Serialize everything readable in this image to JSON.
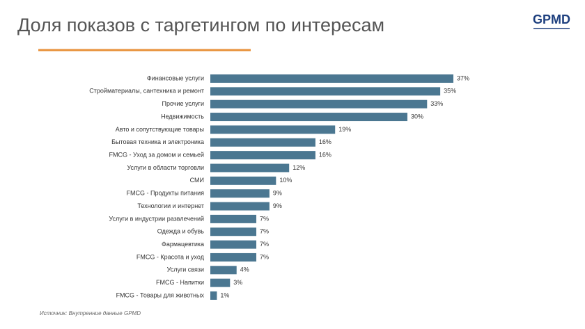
{
  "chart_data": {
    "type": "barh",
    "title": "Доля показов с таргетингом по интересам",
    "brand": "GPMD",
    "source": "Источник: Внутренние данные GPMD",
    "color": "#4b7791",
    "categories": [
      "Финансовые услуги",
      "Стройматериалы, сантехника и ремонт",
      "Прочие услуги",
      "Недвижимость",
      "Авто и сопутствующие товары",
      "Бытовая техника и электроника",
      "FMCG - Уход за домом и семьей",
      "Услуги в области торговли",
      "СМИ",
      "FMCG - Продукты питания",
      "Технологии и интернет",
      "Услуги в индустрии развлечений",
      "Одежда и обувь",
      "Фармацевтика",
      "FMCG - Красота и уход",
      "Услуги связи",
      "FMCG - Напитки",
      "FMCG - Товары для животных"
    ],
    "values": [
      37,
      35,
      33,
      30,
      19,
      16,
      16,
      12,
      10,
      9,
      9,
      7,
      7,
      7,
      7,
      4,
      3,
      1
    ],
    "value_labels": [
      "37%",
      "35%",
      "33%",
      "30%",
      "19%",
      "16%",
      "16%",
      "12%",
      "10%",
      "9%",
      "9%",
      "7%",
      "7%",
      "7%",
      "7%",
      "4%",
      "3%",
      "1%"
    ]
  }
}
